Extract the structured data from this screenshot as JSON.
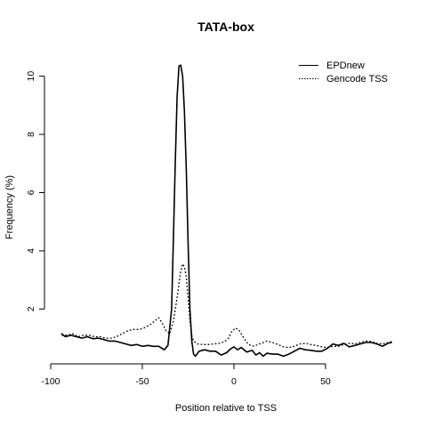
{
  "chart_data": {
    "type": "line",
    "title": "TATA-box",
    "xlabel": "Position relative to TSS",
    "ylabel": "Frequency (%)",
    "xlim": [
      -100,
      85
    ],
    "ylim": [
      0.3,
      10.6
    ],
    "xticks": [
      -100,
      -50,
      0,
      50
    ],
    "xtick_labels": [
      "-100",
      "-50",
      "0",
      "50"
    ],
    "yticks": [
      2,
      4,
      6,
      8,
      10
    ],
    "ytick_labels": [
      "2",
      "4",
      "6",
      "8",
      "10"
    ],
    "grid": false,
    "legend_position": "top-right",
    "series": [
      {
        "name": "EPDnew",
        "line_style": "solid",
        "points": [
          [
            -94,
            1.15
          ],
          [
            -92,
            1.05
          ],
          [
            -89,
            1.1
          ],
          [
            -86,
            1.05
          ],
          [
            -83,
            1.0
          ],
          [
            -80,
            1.05
          ],
          [
            -77,
            0.98
          ],
          [
            -74,
            1.0
          ],
          [
            -71,
            0.95
          ],
          [
            -68,
            0.9
          ],
          [
            -65,
            0.9
          ],
          [
            -62,
            0.85
          ],
          [
            -59,
            0.8
          ],
          [
            -56,
            0.75
          ],
          [
            -53,
            0.78
          ],
          [
            -50,
            0.72
          ],
          [
            -47,
            0.75
          ],
          [
            -44,
            0.72
          ],
          [
            -41,
            0.72
          ],
          [
            -38,
            0.6
          ],
          [
            -36,
            0.75
          ],
          [
            -34,
            2.0
          ],
          [
            -33,
            4.5
          ],
          [
            -32,
            7.0
          ],
          [
            -31,
            9.3
          ],
          [
            -30,
            10.35
          ],
          [
            -29,
            10.38
          ],
          [
            -28,
            10.0
          ],
          [
            -27,
            8.8
          ],
          [
            -26,
            6.8
          ],
          [
            -25,
            4.2
          ],
          [
            -24,
            2.0
          ],
          [
            -23,
            0.9
          ],
          [
            -22,
            0.45
          ],
          [
            -21,
            0.38
          ],
          [
            -19,
            0.55
          ],
          [
            -16,
            0.6
          ],
          [
            -13,
            0.55
          ],
          [
            -10,
            0.55
          ],
          [
            -7,
            0.42
          ],
          [
            -4,
            0.5
          ],
          [
            -2,
            0.62
          ],
          [
            0,
            0.7
          ],
          [
            2,
            0.6
          ],
          [
            4,
            0.68
          ],
          [
            7,
            0.52
          ],
          [
            10,
            0.58
          ],
          [
            12,
            0.42
          ],
          [
            14,
            0.5
          ],
          [
            16,
            0.38
          ],
          [
            18,
            0.48
          ],
          [
            21,
            0.45
          ],
          [
            24,
            0.45
          ],
          [
            27,
            0.38
          ],
          [
            30,
            0.45
          ],
          [
            33,
            0.55
          ],
          [
            36,
            0.65
          ],
          [
            39,
            0.6
          ],
          [
            42,
            0.58
          ],
          [
            45,
            0.55
          ],
          [
            48,
            0.55
          ],
          [
            51,
            0.65
          ],
          [
            54,
            0.8
          ],
          [
            57,
            0.75
          ],
          [
            60,
            0.82
          ],
          [
            63,
            0.7
          ],
          [
            66,
            0.75
          ],
          [
            69,
            0.8
          ],
          [
            72,
            0.85
          ],
          [
            75,
            0.85
          ],
          [
            78,
            0.8
          ],
          [
            81,
            0.72
          ],
          [
            84,
            0.82
          ],
          [
            86,
            0.85
          ]
        ]
      },
      {
        "name": "Gencode TSS",
        "line_style": "dotted",
        "points": [
          [
            -94,
            1.1
          ],
          [
            -91,
            1.1
          ],
          [
            -88,
            1.15
          ],
          [
            -85,
            1.05
          ],
          [
            -82,
            1.1
          ],
          [
            -79,
            1.1
          ],
          [
            -76,
            1.05
          ],
          [
            -73,
            1.05
          ],
          [
            -70,
            1.0
          ],
          [
            -67,
            1.0
          ],
          [
            -64,
            1.05
          ],
          [
            -61,
            1.15
          ],
          [
            -58,
            1.25
          ],
          [
            -55,
            1.3
          ],
          [
            -52,
            1.3
          ],
          [
            -49,
            1.35
          ],
          [
            -46,
            1.45
          ],
          [
            -43,
            1.6
          ],
          [
            -41,
            1.7
          ],
          [
            -39,
            1.5
          ],
          [
            -37,
            1.25
          ],
          [
            -35,
            1.15
          ],
          [
            -33,
            1.6
          ],
          [
            -31,
            2.4
          ],
          [
            -29,
            3.3
          ],
          [
            -28,
            3.55
          ],
          [
            -27,
            3.45
          ],
          [
            -26,
            3.1
          ],
          [
            -25,
            2.4
          ],
          [
            -24,
            1.6
          ],
          [
            -23,
            1.1
          ],
          [
            -22,
            0.9
          ],
          [
            -20,
            0.8
          ],
          [
            -17,
            0.78
          ],
          [
            -14,
            0.78
          ],
          [
            -11,
            0.8
          ],
          [
            -8,
            0.82
          ],
          [
            -5,
            0.88
          ],
          [
            -3,
            1.0
          ],
          [
            -1,
            1.25
          ],
          [
            1,
            1.35
          ],
          [
            3,
            1.25
          ],
          [
            5,
            1.05
          ],
          [
            7,
            0.85
          ],
          [
            9,
            0.75
          ],
          [
            11,
            0.72
          ],
          [
            13,
            0.78
          ],
          [
            15,
            0.82
          ],
          [
            18,
            0.9
          ],
          [
            21,
            0.85
          ],
          [
            24,
            0.78
          ],
          [
            27,
            0.7
          ],
          [
            30,
            0.68
          ],
          [
            33,
            0.72
          ],
          [
            36,
            0.8
          ],
          [
            39,
            0.82
          ],
          [
            42,
            0.78
          ],
          [
            45,
            0.75
          ],
          [
            48,
            0.7
          ],
          [
            51,
            0.68
          ],
          [
            54,
            0.72
          ],
          [
            57,
            0.72
          ],
          [
            60,
            0.78
          ],
          [
            63,
            0.82
          ],
          [
            66,
            0.8
          ],
          [
            69,
            0.85
          ],
          [
            72,
            0.9
          ],
          [
            75,
            0.88
          ],
          [
            78,
            0.82
          ],
          [
            81,
            0.8
          ],
          [
            84,
            0.85
          ],
          [
            86,
            0.88
          ]
        ]
      }
    ]
  }
}
